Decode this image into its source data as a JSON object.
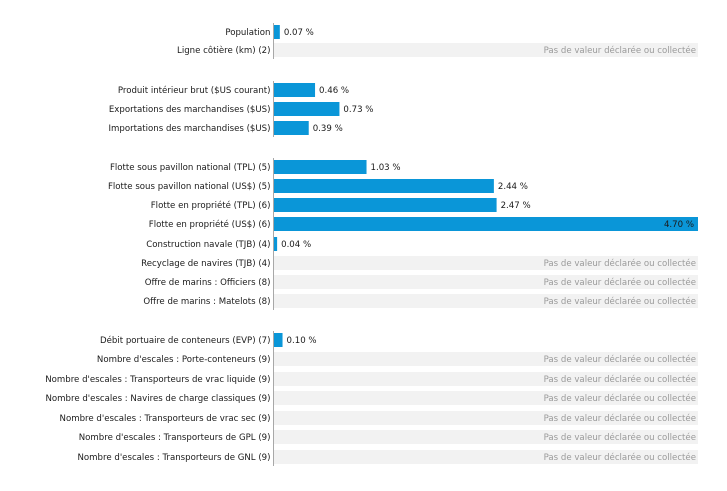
{
  "chart_data": {
    "type": "bar",
    "orientation": "horizontal",
    "bar_color": "#0a96d8",
    "no_value_background": "#f2f2f2",
    "axis_color": "#a8a8a8",
    "xlim": [
      0,
      4.7
    ],
    "unit": "%",
    "rows": [
      {
        "label": "Population",
        "value": 0.07,
        "text": "0.07 %"
      },
      {
        "label": "Ligne côtière (km) (2)",
        "value": null,
        "text": "Pas de valeur déclarée ou collectée"
      },
      {
        "label": "Produit intérieur brut ($US courant)",
        "value": 0.46,
        "text": "0.46 %"
      },
      {
        "label": "Exportations des marchandises ($US)",
        "value": 0.73,
        "text": "0.73 %"
      },
      {
        "label": "Importations des marchandises ($US)",
        "value": 0.39,
        "text": "0.39 %"
      },
      {
        "label": "Flotte sous pavillon national (TPL) (5)",
        "value": 1.03,
        "text": "1.03 %"
      },
      {
        "label": "Flotte sous pavillon national (US$) (5)",
        "value": 2.44,
        "text": "2.44 %"
      },
      {
        "label": "Flotte en propriété (TPL) (6)",
        "value": 2.47,
        "text": "2.47 %"
      },
      {
        "label": "Flotte en propriété (US$) (6)",
        "value": 4.7,
        "text": "4.70 %"
      },
      {
        "label": "Construction navale (TJB) (4)",
        "value": 0.04,
        "text": "0.04 %"
      },
      {
        "label": "Recyclage de navires (TJB) (4)",
        "value": null,
        "text": "Pas de valeur déclarée ou collectée"
      },
      {
        "label": "Offre de marins : Officiers (8)",
        "value": null,
        "text": "Pas de valeur déclarée ou collectée"
      },
      {
        "label": "Offre de marins : Matelots (8)",
        "value": null,
        "text": "Pas de valeur déclarée ou collectée"
      },
      {
        "label": "Débit portuaire de conteneurs (EVP) (7)",
        "value": 0.1,
        "text": "0.10 %"
      },
      {
        "label": "Nombre d'escales : Porte-conteneurs (9)",
        "value": null,
        "text": "Pas de valeur déclarée ou collectée"
      },
      {
        "label": "Nombre d'escales : Transporteurs de vrac liquide (9)",
        "value": null,
        "text": "Pas de valeur déclarée ou collectée"
      },
      {
        "label": "Nombre d'escales : Navires de charge classiques (9)",
        "value": null,
        "text": "Pas de valeur déclarée ou collectée"
      },
      {
        "label": "Nombre d'escales : Transporteurs de vrac sec (9)",
        "value": null,
        "text": "Pas de valeur déclarée ou collectée"
      },
      {
        "label": "Nombre d'escales : Transporteurs de GPL (9)",
        "value": null,
        "text": "Pas de valeur déclarée ou collectée"
      },
      {
        "label": "Nombre d'escales : Transporteurs de GNL (9)",
        "value": null,
        "text": "Pas de valeur déclarée ou collectée"
      }
    ]
  }
}
